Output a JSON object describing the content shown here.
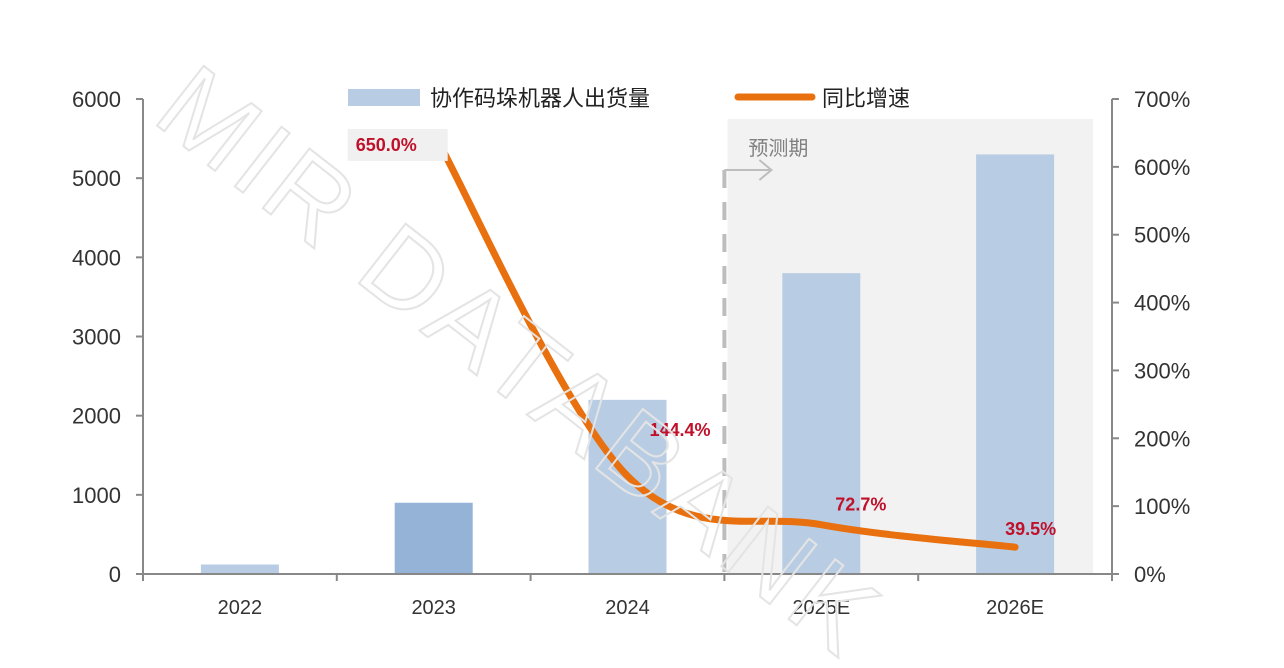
{
  "chart_data": {
    "type": "bar+line",
    "categories": [
      "2022",
      "2023",
      "2024",
      "2025E",
      "2026E"
    ],
    "series": [
      {
        "name": "协作码垛机器人出货量",
        "type": "bar",
        "axis": "left",
        "values": [
          120,
          900,
          2200,
          3800,
          5300
        ]
      },
      {
        "name": "同比增速",
        "type": "line",
        "axis": "right",
        "values": [
          null,
          650.0,
          144.4,
          72.7,
          39.5
        ],
        "labels": [
          null,
          "650.0%",
          "144.4%",
          "72.7%",
          "39.5%"
        ]
      }
    ],
    "left_axis": {
      "ylim": [
        0,
        6000
      ],
      "ticks": [
        "0",
        "1000",
        "2000",
        "3000",
        "4000",
        "5000",
        "6000"
      ]
    },
    "right_axis": {
      "ylim": [
        0,
        700
      ],
      "ticks": [
        "0%",
        "100%",
        "200%",
        "300%",
        "400%",
        "500%",
        "600%",
        "700%"
      ]
    },
    "forecast_label": "预测期",
    "forecast_start_index": 3,
    "legend_position": "top",
    "watermark": "MIR DATABANK",
    "colors": {
      "bar": "#b8cde4",
      "bar_highlight": "#95b3d7",
      "line": "#e8700e",
      "label": "#c0102a",
      "forecast_bg": "#f2f2f3"
    }
  }
}
